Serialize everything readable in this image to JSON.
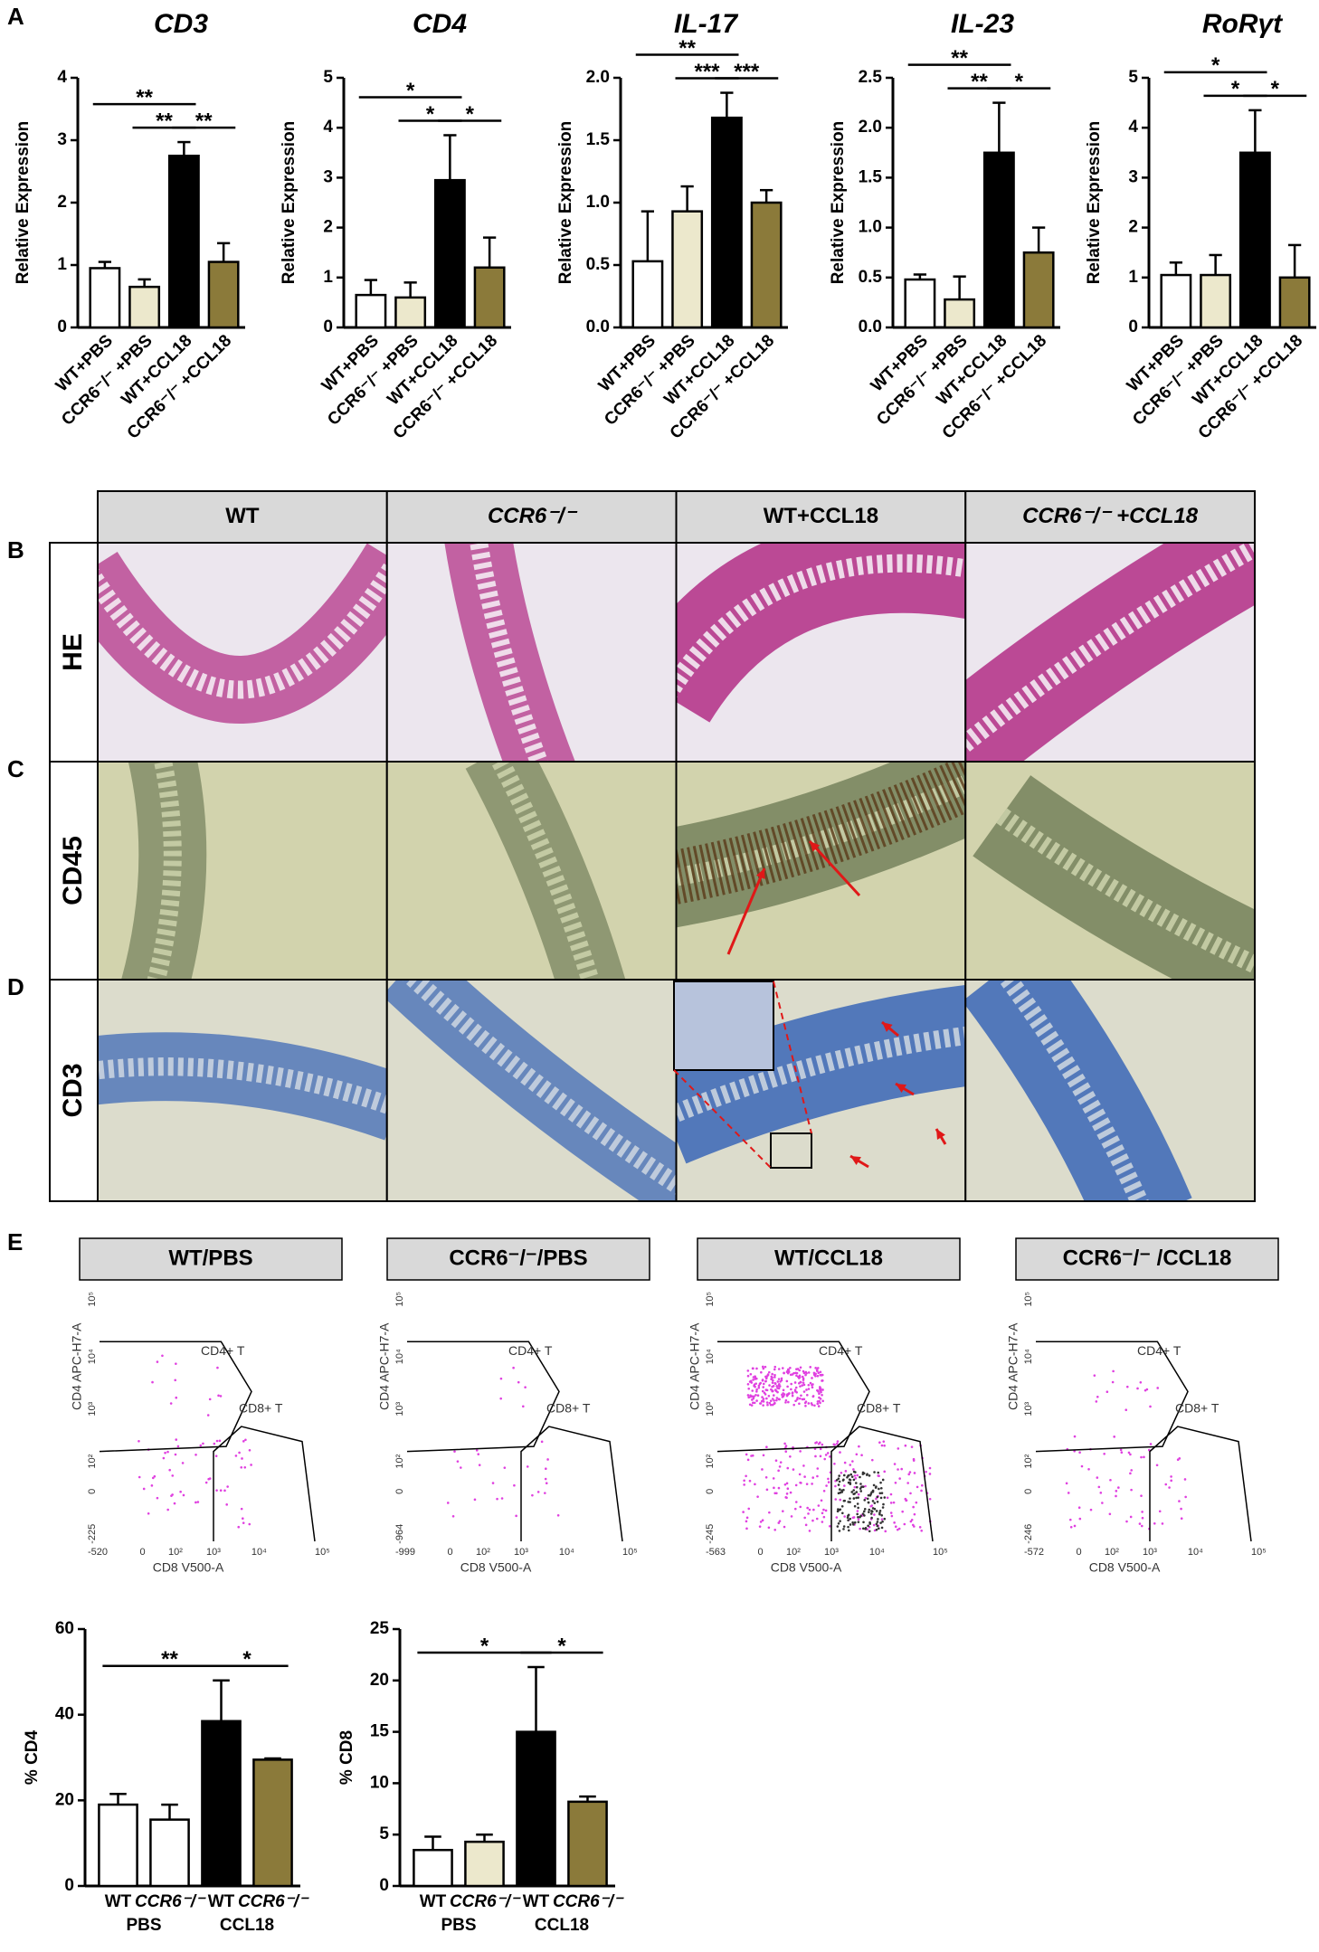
{
  "panel_labels": [
    "A",
    "B",
    "C",
    "D",
    "E"
  ],
  "chart_data": [
    {
      "type": "bar",
      "title": "CD3",
      "ylabel": "Relative Expression",
      "categories": [
        "WT+PBS",
        "CCR6⁻/⁻ +PBS",
        "WT+CCL18",
        "CCR6⁻/⁻ +CCL18"
      ],
      "values": [
        0.95,
        0.65,
        2.75,
        1.05
      ],
      "errors": [
        0.1,
        0.12,
        0.22,
        0.3
      ],
      "colors": [
        "#ffffff",
        "#ece8cc",
        "#000000",
        "#8b7a3a"
      ],
      "ylim": [
        0,
        4
      ],
      "yticks": [
        0,
        1,
        2,
        3,
        4
      ],
      "significance": [
        {
          "label": "**",
          "pair": [
            0,
            2
          ]
        },
        {
          "label": "**",
          "pair": [
            1,
            2
          ]
        },
        {
          "label": "**",
          "pair": [
            2,
            3
          ]
        }
      ]
    },
    {
      "type": "bar",
      "title": "CD4",
      "ylabel": "Relative Expression",
      "categories": [
        "WT+PBS",
        "CCR6⁻/⁻ +PBS",
        "WT+CCL18",
        "CCR6⁻/⁻ +CCL18"
      ],
      "values": [
        0.65,
        0.6,
        2.95,
        1.2
      ],
      "errors": [
        0.3,
        0.3,
        0.9,
        0.6
      ],
      "colors": [
        "#ffffff",
        "#ece8cc",
        "#000000",
        "#8b7a3a"
      ],
      "ylim": [
        0,
        5
      ],
      "yticks": [
        0,
        1,
        2,
        3,
        4,
        5
      ],
      "significance": [
        {
          "label": "*",
          "pair": [
            0,
            2
          ]
        },
        {
          "label": "*",
          "pair": [
            1,
            2
          ]
        },
        {
          "label": "*",
          "pair": [
            2,
            3
          ]
        }
      ]
    },
    {
      "type": "bar",
      "title": "IL-17",
      "ylabel": "Relative Expression",
      "categories": [
        "WT+PBS",
        "CCR6⁻/⁻ +PBS",
        "WT+CCL18",
        "CCR6⁻/⁻ +CCL18"
      ],
      "values": [
        0.53,
        0.93,
        1.68,
        1.0
      ],
      "errors": [
        0.4,
        0.2,
        0.2,
        0.1
      ],
      "colors": [
        "#ffffff",
        "#ece8cc",
        "#000000",
        "#8b7a3a"
      ],
      "ylim": [
        0,
        2
      ],
      "yticks": [
        {
          "value": 0,
          "label": "0.0"
        },
        0.5,
        {
          "value": 1,
          "label": "1.0"
        },
        1.5,
        {
          "value": 2,
          "label": "2.0"
        }
      ],
      "significance": [
        {
          "label": "**",
          "pair": [
            0,
            2
          ]
        },
        {
          "label": "***",
          "pair": [
            1,
            2
          ]
        },
        {
          "label": "***",
          "pair": [
            2,
            3
          ]
        }
      ]
    },
    {
      "type": "bar",
      "title": "IL-23",
      "ylabel": "Relative Expression",
      "categories": [
        "WT+PBS",
        "CCR6⁻/⁻ +PBS",
        "WT+CCL18",
        "CCR6⁻/⁻ +CCL18"
      ],
      "values": [
        0.48,
        0.28,
        1.75,
        0.75
      ],
      "errors": [
        0.05,
        0.23,
        0.5,
        0.25
      ],
      "colors": [
        "#ffffff",
        "#ece8cc",
        "#000000",
        "#8b7a3a"
      ],
      "ylim": [
        0,
        2.5
      ],
      "yticks": [
        {
          "value": 0,
          "label": "0.0"
        },
        0.5,
        {
          "value": 1,
          "label": "1.0"
        },
        1.5,
        {
          "value": 2,
          "label": "2.0"
        },
        2.5
      ],
      "significance": [
        {
          "label": "**",
          "pair": [
            0,
            2
          ]
        },
        {
          "label": "**",
          "pair": [
            1,
            2
          ]
        },
        {
          "label": "*",
          "pair": [
            2,
            3
          ]
        }
      ]
    },
    {
      "type": "bar",
      "title": "RoRγt",
      "ylabel": "Relative Expression",
      "categories": [
        "WT+PBS",
        "CCR6⁻/⁻ +PBS",
        "WT+CCL18",
        "CCR6⁻/⁻ +CCL18"
      ],
      "values": [
        1.05,
        1.05,
        3.5,
        1.0
      ],
      "errors": [
        0.25,
        0.4,
        0.85,
        0.65
      ],
      "colors": [
        "#ffffff",
        "#ece8cc",
        "#000000",
        "#8b7a3a"
      ],
      "ylim": [
        0,
        5
      ],
      "yticks": [
        0,
        1,
        2,
        3,
        4,
        5
      ],
      "significance": [
        {
          "label": "*",
          "pair": [
            0,
            2
          ]
        },
        {
          "label": "*",
          "pair": [
            1,
            2
          ]
        },
        {
          "label": "*",
          "pair": [
            2,
            3
          ]
        }
      ]
    },
    {
      "type": "bar",
      "ylabel": "% CD4",
      "categories": [
        "WT",
        "CCR6⁻/⁻",
        "WT",
        "CCR6⁻/⁻"
      ],
      "groups": [
        "PBS",
        "CCL18"
      ],
      "values": [
        19,
        15.5,
        38.5,
        29.5
      ],
      "errors": [
        2.5,
        3.5,
        9.5,
        0.3
      ],
      "colors": [
        "#ffffff",
        "#ffffff",
        "#000000",
        "#8b7a3a"
      ],
      "ylim": [
        0,
        60
      ],
      "yticks": [
        0,
        20,
        40,
        60
      ],
      "significance": [
        {
          "label": "**",
          "pair": [
            0,
            2
          ]
        },
        {
          "label": "*",
          "pair": [
            2,
            3
          ]
        }
      ]
    },
    {
      "type": "bar",
      "ylabel": "% CD8",
      "categories": [
        "WT",
        "CCR6⁻/⁻",
        "WT",
        "CCR6⁻/⁻"
      ],
      "groups": [
        "PBS",
        "CCL18"
      ],
      "values": [
        3.5,
        4.3,
        15,
        8.2
      ],
      "errors": [
        1.3,
        0.7,
        6.3,
        0.5
      ],
      "colors": [
        "#ffffff",
        "#ece8cc",
        "#000000",
        "#8b7a3a"
      ],
      "ylim": [
        0,
        25
      ],
      "yticks": [
        0,
        5,
        10,
        15,
        20,
        25
      ],
      "significance": [
        {
          "label": "*",
          "pair": [
            0,
            2
          ]
        },
        {
          "label": "*",
          "pair": [
            2,
            3
          ]
        }
      ]
    }
  ],
  "histology": {
    "columns": [
      "WT",
      "CCR6⁻/⁻",
      "WT+CCL18",
      "CCR6⁻/⁻ +CCL18"
    ],
    "rows": [
      "HE",
      "CD45",
      "CD3"
    ]
  },
  "flow": {
    "y_label": "CD4 APC-H7-A",
    "x_label": "CD8 V500-A",
    "gates": [
      "CD4+ T",
      "CD8+ T"
    ],
    "y_ticks": [
      "10⁵",
      "10⁴",
      "10³",
      "10²",
      "0"
    ],
    "x_ticks": [
      "0",
      "10²",
      "10³",
      "10⁴",
      "10⁵"
    ],
    "plots": [
      {
        "title": "WT/PBS",
        "y_min": "-225",
        "x_min": "-520"
      },
      {
        "title": "CCR6⁻/⁻/PBS",
        "y_min": "-964",
        "x_min": "-999"
      },
      {
        "title": "WT/CCL18",
        "y_min": "-245",
        "x_min": "-563"
      },
      {
        "title": "CCR6⁻/⁻ /CCL18",
        "y_min": "-246",
        "x_min": "-572"
      }
    ]
  }
}
